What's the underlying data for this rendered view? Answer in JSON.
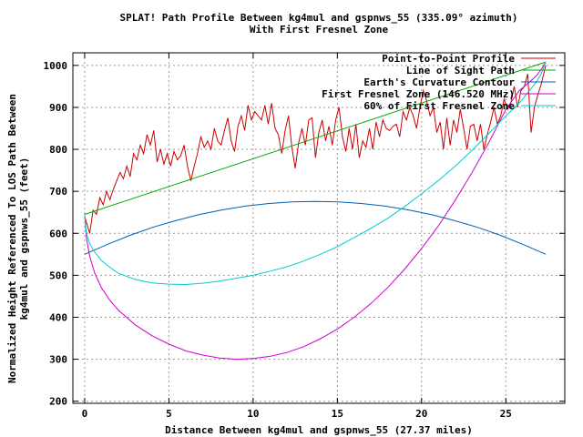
{
  "chart_data": {
    "type": "line",
    "title": "SPLAT! Path Profile Between kg4mul and gspnws_55 (335.09° azimuth)",
    "subtitle": "With First Fresnel Zone",
    "xlabel": "Distance Between kg4mul and gspnws_55 (27.37 miles)",
    "ylabel_lines": [
      "Normalized Height Referenced To LOS Path Between",
      "kg4mul and gspnws_55 (feet)"
    ],
    "xlim": [
      -0.7,
      28.5
    ],
    "ylim": [
      195,
      1030
    ],
    "x_ticks": [
      0,
      5,
      10,
      15,
      20,
      25
    ],
    "y_ticks": [
      200,
      300,
      400,
      500,
      600,
      700,
      800,
      900,
      1000
    ],
    "grid": true,
    "legend_position": "top-right",
    "series": [
      {
        "name": "Point-to-Point Profile",
        "color": "#cc0000",
        "x": [
          0,
          0.3,
          0.5,
          0.7,
          0.9,
          1.1,
          1.3,
          1.5,
          1.7,
          1.9,
          2.1,
          2.3,
          2.5,
          2.7,
          2.9,
          3.1,
          3.3,
          3.5,
          3.7,
          3.9,
          4.1,
          4.3,
          4.5,
          4.7,
          4.9,
          5.1,
          5.3,
          5.5,
          5.7,
          5.9,
          6.1,
          6.3,
          6.5,
          6.7,
          6.9,
          7.1,
          7.3,
          7.5,
          7.7,
          7.9,
          8.1,
          8.3,
          8.5,
          8.7,
          8.9,
          9.1,
          9.3,
          9.5,
          9.7,
          9.9,
          10.1,
          10.3,
          10.5,
          10.7,
          10.9,
          11.1,
          11.3,
          11.5,
          11.7,
          11.9,
          12.1,
          12.3,
          12.5,
          12.7,
          12.9,
          13.1,
          13.3,
          13.5,
          13.7,
          13.9,
          14.1,
          14.3,
          14.5,
          14.7,
          14.9,
          15.1,
          15.3,
          15.5,
          15.7,
          15.9,
          16.1,
          16.3,
          16.5,
          16.7,
          16.9,
          17.1,
          17.3,
          17.5,
          17.7,
          17.9,
          18.1,
          18.3,
          18.5,
          18.7,
          18.9,
          19.1,
          19.3,
          19.5,
          19.7,
          19.9,
          20.1,
          20.3,
          20.5,
          20.7,
          20.9,
          21.1,
          21.3,
          21.5,
          21.7,
          21.9,
          22.1,
          22.3,
          22.5,
          22.7,
          22.9,
          23.1,
          23.3,
          23.5,
          23.7,
          23.9,
          24.1,
          24.3,
          24.5,
          24.7,
          24.9,
          25.1,
          25.3,
          25.5,
          25.7,
          25.9,
          26.1,
          26.3,
          26.5,
          26.7,
          26.9,
          27.1,
          27.37
        ],
        "y": [
          640,
          600,
          655,
          645,
          685,
          668,
          700,
          680,
          705,
          725,
          745,
          730,
          760,
          735,
          790,
          775,
          810,
          790,
          835,
          810,
          845,
          770,
          800,
          765,
          790,
          760,
          795,
          775,
          785,
          810,
          760,
          725,
          760,
          790,
          830,
          805,
          820,
          800,
          850,
          820,
          810,
          845,
          875,
          820,
          795,
          855,
          880,
          845,
          905,
          870,
          890,
          880,
          870,
          905,
          860,
          910,
          850,
          835,
          790,
          845,
          880,
          805,
          755,
          815,
          850,
          810,
          870,
          875,
          780,
          840,
          870,
          820,
          855,
          810,
          870,
          900,
          830,
          795,
          850,
          800,
          860,
          780,
          820,
          805,
          850,
          800,
          865,
          830,
          870,
          850,
          845,
          855,
          860,
          830,
          890,
          870,
          900,
          880,
          850,
          900,
          940,
          915,
          880,
          900,
          840,
          865,
          800,
          875,
          810,
          870,
          840,
          895,
          850,
          800,
          855,
          860,
          820,
          860,
          800,
          835,
          865,
          900,
          860,
          880,
          920,
          895,
          910,
          950,
          900,
          940,
          950,
          980,
          840,
          900,
          930,
          955,
          1000
        ]
      },
      {
        "name": "Line of Sight Path",
        "color": "#00aa00",
        "x": [
          0,
          27.37
        ],
        "y": [
          645,
          1008
        ]
      },
      {
        "name": "Earth's Curvature Contour",
        "color": "#0060b0",
        "x": [
          0,
          1.37,
          2.74,
          4.1,
          5.47,
          6.84,
          8.21,
          9.58,
          10.95,
          12.32,
          13.69,
          15.05,
          16.42,
          17.79,
          19.16,
          20.53,
          21.9,
          23.26,
          24.63,
          26.0,
          27.37
        ],
        "y": [
          550,
          574,
          596,
          615,
          631,
          645,
          656,
          665,
          671,
          675,
          676,
          675,
          671,
          665,
          656,
          645,
          631,
          615,
          596,
          574,
          550
        ]
      },
      {
        "name": "First Fresnel Zone (146.520 MHz)",
        "color": "#cc00cc",
        "x": [
          0,
          0.1,
          0.3,
          0.6,
          1.0,
          1.5,
          2.0,
          3.0,
          4.0,
          5.0,
          6.0,
          7.0,
          8.0,
          9.0,
          10.0,
          11.0,
          12.0,
          13.0,
          14.0,
          15.0,
          16.0,
          17.0,
          18.0,
          19.0,
          20.0,
          21.0,
          22.0,
          23.0,
          24.0,
          25.0,
          25.8,
          26.4,
          26.8,
          27.1,
          27.37
        ],
        "y": [
          645,
          590,
          545,
          505,
          470,
          440,
          417,
          382,
          356,
          336,
          320,
          310,
          303,
          300,
          302,
          307,
          316,
          330,
          349,
          372,
          400,
          433,
          471,
          515,
          564,
          618,
          679,
          745,
          817,
          895,
          940,
          960,
          975,
          990,
          1008
        ]
      },
      {
        "name": "60% of First Fresnel Zone",
        "color": "#00cccc",
        "x": [
          0,
          0.1,
          0.3,
          0.6,
          1.0,
          1.5,
          2.0,
          3.0,
          4.0,
          5.0,
          6.0,
          7.0,
          8.0,
          9.0,
          10.0,
          11.0,
          12.0,
          13.0,
          14.0,
          15.0,
          16.0,
          17.0,
          18.0,
          19.0,
          20.0,
          21.0,
          22.0,
          23.0,
          24.0,
          25.0,
          25.8,
          26.4,
          26.8,
          27.1,
          27.37
        ],
        "y": [
          645,
          600,
          575,
          555,
          535,
          519,
          505,
          490,
          482,
          479,
          478,
          481,
          486,
          493,
          500,
          510,
          520,
          534,
          550,
          568,
          590,
          612,
          636,
          664,
          694,
          726,
          760,
          798,
          838,
          880,
          910,
          940,
          960,
          980,
          1008
        ]
      }
    ]
  }
}
